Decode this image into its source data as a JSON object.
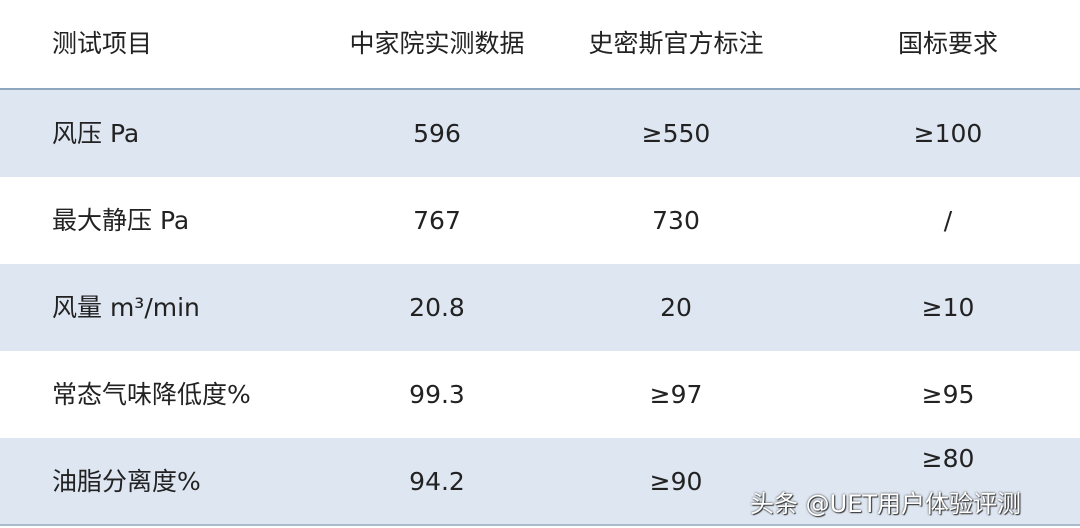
{
  "headers": [
    "测试项目",
    "中家院实测数据",
    "史密斯官方标注",
    "国标要求"
  ],
  "rows": [
    [
      "风压 Pa",
      "596",
      "≥550",
      "≥100"
    ],
    [
      "最大静压 Pa",
      "767",
      "730",
      "/"
    ],
    [
      "风量 m³/min",
      "20.8",
      "20",
      "≥10"
    ],
    [
      "常态气味降低度%",
      "99.3",
      "≥97",
      "≥95"
    ],
    [
      "油脂分离度%",
      "94.2",
      "≥90",
      "≥80"
    ]
  ],
  "watermark": "头条 @UET用户体验评测",
  "colors": {
    "row_shade": "#dee6f1",
    "header_border": "#8fa6bf"
  }
}
